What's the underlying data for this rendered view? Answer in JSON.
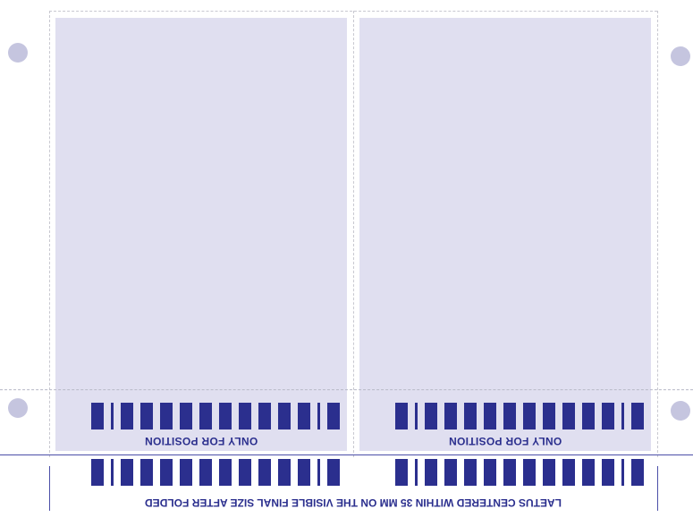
{
  "labels": {
    "fpo_left": "ONLY FOR POSITION",
    "fpo_right": "ONLY FOR POSITION",
    "bottom_note": "LAETUS CENTERED WITHIN 35 MM ON THE VISIBLE FINAL SIZE AFTER FOLDED"
  },
  "colors": {
    "panel": "#e0dff0",
    "ink": "#2b2f8e",
    "registration_dot": "#c5c5df"
  },
  "barcode_pattern": [
    "wide",
    "thin",
    "wide",
    "wide",
    "wide",
    "wide",
    "wide",
    "wide",
    "wide",
    "wide",
    "wide",
    "wide",
    "thin",
    "wide"
  ]
}
